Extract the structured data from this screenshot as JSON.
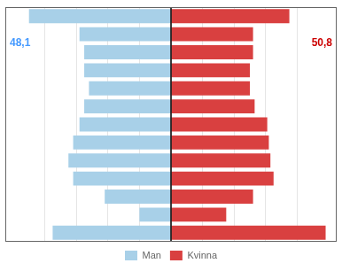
{
  "chart_data": {
    "type": "bar",
    "orientation": "horizontal",
    "categories": [
      null,
      null,
      null,
      null,
      null,
      null,
      null,
      null,
      null,
      null,
      null,
      null,
      null
    ],
    "series": [
      {
        "name": "Man",
        "color": "#a8d0e8",
        "values": [
          -7.5,
          -2.0,
          -4.2,
          -6.2,
          -6.5,
          -6.2,
          -5.8,
          -5.5,
          -5.2,
          -5.5,
          -5.5,
          -5.8,
          -9.0
        ]
      },
      {
        "name": "Kvinna",
        "color": "#d94040",
        "values": [
          9.8,
          3.5,
          5.2,
          6.5,
          6.3,
          6.2,
          6.1,
          5.3,
          5.0,
          5.0,
          5.2,
          5.2,
          7.5
        ]
      }
    ],
    "xlim": [
      -10.5,
      10.5
    ],
    "xticks": [
      -8,
      -6,
      -4,
      -2,
      0,
      2,
      4,
      6,
      8
    ],
    "grid": true,
    "tick_labels": false,
    "legend": "bottom",
    "annotations": [
      {
        "text": "48,1",
        "color": "#4499ff"
      },
      {
        "text": "50,8",
        "color": "#cc0000"
      }
    ]
  }
}
